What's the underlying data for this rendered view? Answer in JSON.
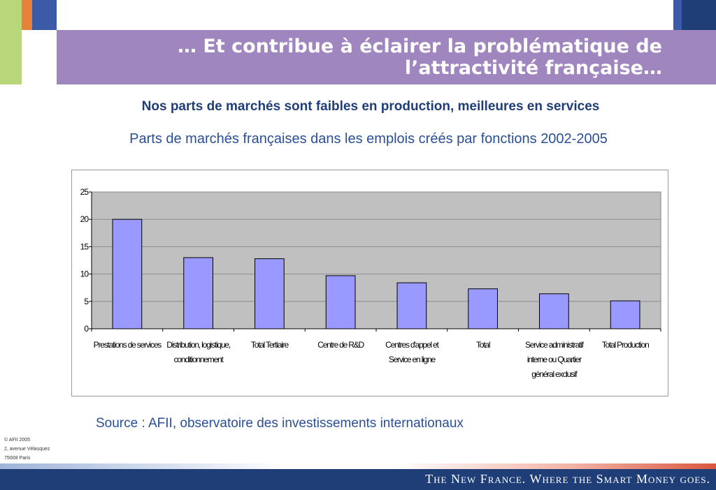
{
  "header": {
    "title_line1": "… Et contribue à éclairer la problématique de",
    "title_line2": "l’attractivité française…"
  },
  "subtitle": "Nos parts de marchés sont faibles en production, meilleures en services",
  "chart_caption": "Parts de marchés françaises dans les emplois créés par fonctions 2002-2005",
  "chart_data": {
    "type": "bar",
    "categories": [
      [
        "Prestations de services"
      ],
      [
        "Distribution, logistique,",
        "conditionnement"
      ],
      [
        "Total Tertiaire"
      ],
      [
        "Centre de R&D"
      ],
      [
        "Centres d'appel et",
        "Service en ligne"
      ],
      [
        "Total"
      ],
      [
        "Service administratif",
        "interne ou Quartier",
        "général exclusif"
      ],
      [
        "Total Production"
      ]
    ],
    "values": [
      20,
      13,
      12.8,
      9.7,
      8.4,
      7.3,
      6.4,
      5.1
    ],
    "ylim": [
      0,
      25
    ],
    "yticks": [
      "0",
      "5",
      "10",
      "15",
      "20",
      "25"
    ],
    "bar_color": "#9999ff",
    "plot_background": "#c0c0c0",
    "grid": true,
    "legend": "none"
  },
  "source": "Source : AFII, observatoire des investissements internationaux",
  "footer": {
    "address_lines": [
      "© AFII 2005",
      "2, avenue Vélasquez",
      "75008 Paris"
    ],
    "tagline": "The New France. Where the Smart Money goes."
  }
}
